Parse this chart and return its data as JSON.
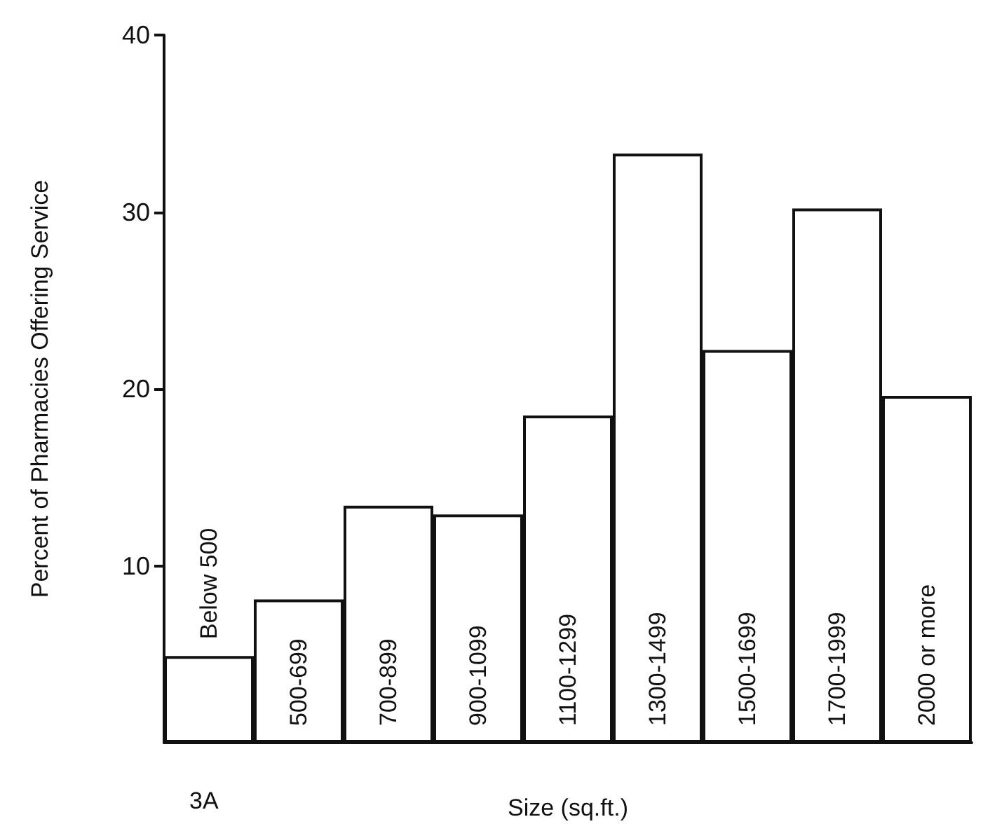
{
  "chart_data": {
    "type": "bar",
    "ylabel": "Percent of Pharmacies Offering Service",
    "xlabel": "Size (sq.ft.)",
    "annotations": [
      "3A"
    ],
    "categories": [
      "Below 500",
      "500-699",
      "700-899",
      "900-1099",
      "1100-1299",
      "1300-1499",
      "1500-1699",
      "1700-1999",
      "2000 or more"
    ],
    "values": [
      4.9,
      8.1,
      13.4,
      12.9,
      18.5,
      33.3,
      22.2,
      30.2,
      19.6
    ],
    "color": "#ffffff",
    "ylim": [
      0,
      40
    ],
    "yticks": [
      10,
      20,
      30,
      40
    ],
    "grid": false
  }
}
